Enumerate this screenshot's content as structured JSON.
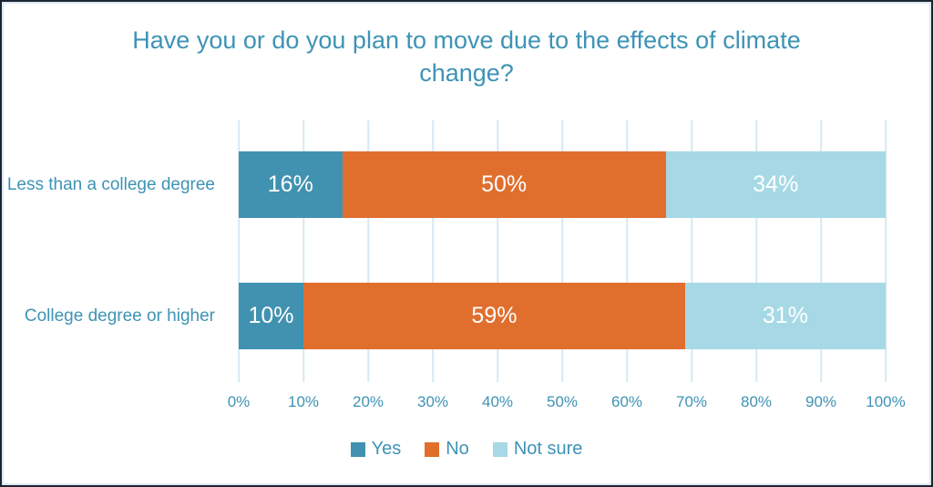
{
  "chart_data": {
    "type": "bar",
    "orientation": "horizontal-stacked",
    "title": "Have you or do you plan to move due to the effects of climate change?",
    "categories": [
      "Less than a college degree",
      "College degree or higher"
    ],
    "series": [
      {
        "name": "Yes",
        "color": "#4192b0",
        "values": [
          16,
          10
        ]
      },
      {
        "name": "No",
        "color": "#e06f2e",
        "values": [
          50,
          59
        ]
      },
      {
        "name": "Not sure",
        "color": "#a6d9e5",
        "values": [
          34,
          31
        ]
      }
    ],
    "value_suffix": "%",
    "data_labels": [
      [
        "16%",
        "50%",
        "34%"
      ],
      [
        "10%",
        "59%",
        "31%"
      ]
    ],
    "xlabel": "",
    "ylabel": "",
    "xlim": [
      0,
      100
    ],
    "x_ticks": [
      "0%",
      "10%",
      "20%",
      "30%",
      "40%",
      "50%",
      "60%",
      "70%",
      "80%",
      "90%",
      "100%"
    ],
    "grid": true,
    "legend_position": "bottom",
    "legend_entries": [
      "Yes",
      "No",
      "Not sure"
    ],
    "theme": {
      "title_color": "#3e93b5",
      "axis_text_color": "#3e93b5",
      "category_label_color": "#3e93b5",
      "legend_text_color": "#3e93b5",
      "data_label_color": "#ffffff",
      "gridline_color": "#d5e9f2",
      "background_color": "#ffffff",
      "frame_border_color": "#1b2531"
    }
  }
}
